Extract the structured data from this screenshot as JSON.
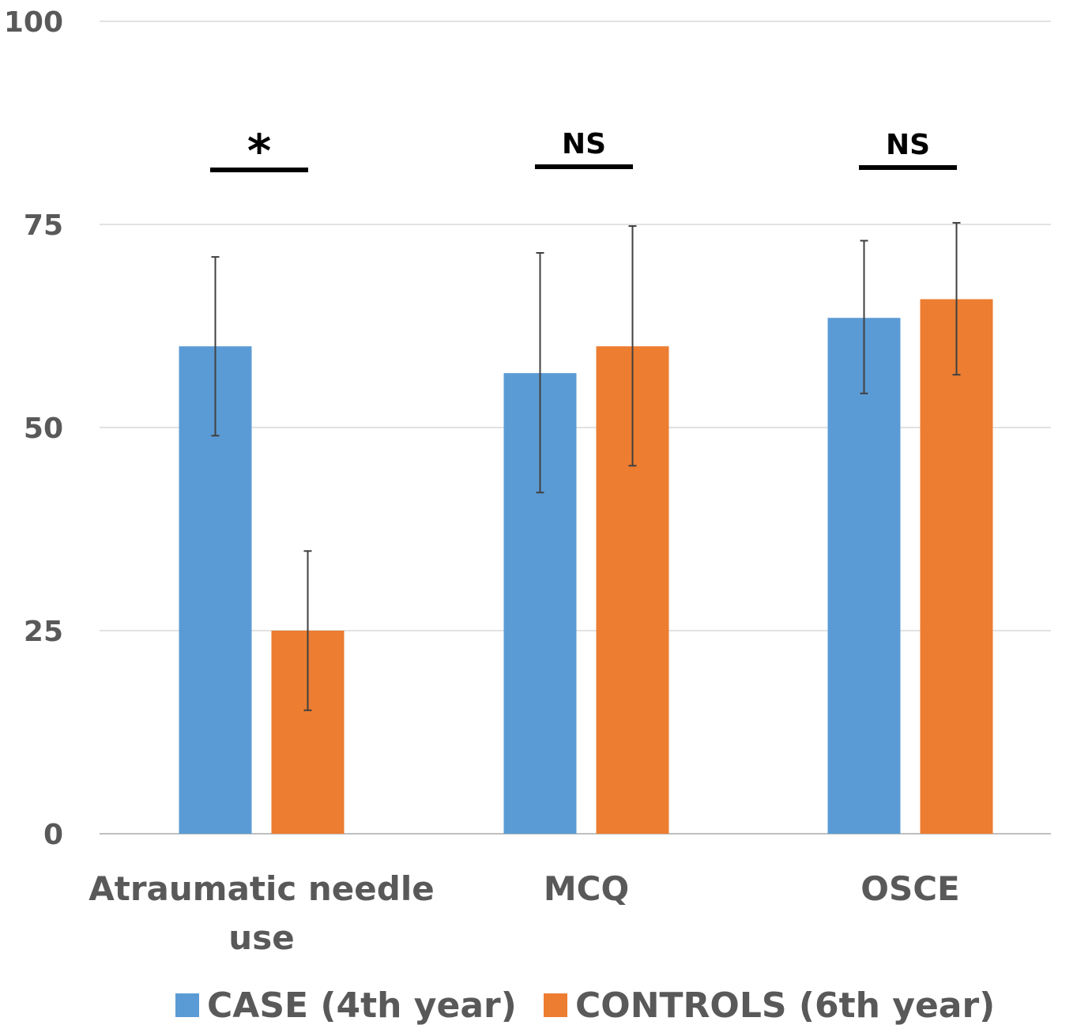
{
  "chart_data": {
    "type": "bar",
    "title": "",
    "xlabel": "",
    "ylabel": "",
    "ylim": [
      0,
      100
    ],
    "yticks": [
      "0",
      "25",
      "50",
      "75",
      "100"
    ],
    "grid": true,
    "legend_position": "bottom",
    "categories": [
      {
        "lines": [
          "Atraumatic needle",
          "use"
        ]
      },
      {
        "lines": [
          "MCQ"
        ]
      },
      {
        "lines": [
          "OSCE"
        ]
      }
    ],
    "series": [
      {
        "name": "CASE (4th year)",
        "color": "#5B9BD5",
        "values": [
          60,
          56.7,
          63.5
        ],
        "error_low": [
          49,
          42,
          54.2
        ],
        "error_high": [
          71,
          71.5,
          73
        ]
      },
      {
        "name": "CONTROLS (6th year)",
        "color": "#ED7D31",
        "values": [
          25,
          60,
          65.8
        ],
        "error_low": [
          15.2,
          45.3,
          56.5
        ],
        "error_high": [
          34.8,
          74.8,
          75.2
        ]
      }
    ],
    "significance": [
      {
        "label": "*"
      },
      {
        "label": "NS"
      },
      {
        "label": "NS"
      }
    ]
  }
}
